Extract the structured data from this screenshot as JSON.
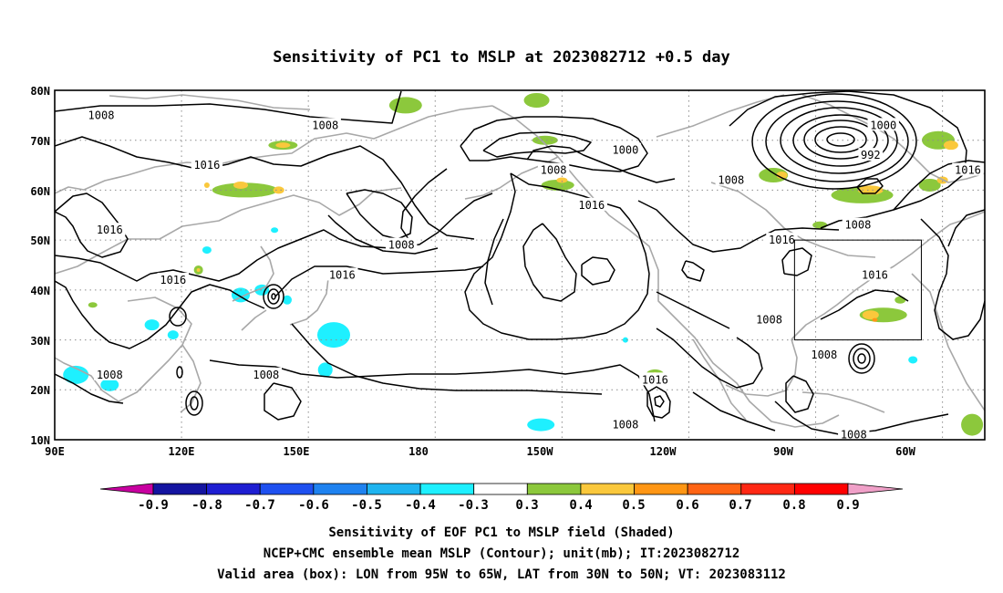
{
  "title": "Sensitivity of PC1 to MSLP at 2023082712 +0.5 day",
  "axes": {
    "x_ticks": [
      "90E",
      "120E",
      "150E",
      "180",
      "150W",
      "120W",
      "90W",
      "60W"
    ],
    "y_ticks": [
      "80N",
      "70N",
      "60N",
      "50N",
      "40N",
      "30N",
      "20N",
      "10N"
    ],
    "lon_range_east": [
      90,
      310
    ],
    "lat_range": [
      10,
      80
    ],
    "grid": true
  },
  "contour_labels": [
    {
      "text": "1008",
      "lon": 101,
      "lat": 75
    },
    {
      "text": "1008",
      "lon": 154,
      "lat": 73
    },
    {
      "text": "1016",
      "lon": 126,
      "lat": 65
    },
    {
      "text": "1016",
      "lon": 103,
      "lat": 52
    },
    {
      "text": "1016",
      "lon": 118,
      "lat": 42
    },
    {
      "text": "1008",
      "lon": 103,
      "lat": 23
    },
    {
      "text": "1008",
      "lon": 140,
      "lat": 23
    },
    {
      "text": "1016",
      "lon": 158,
      "lat": 43
    },
    {
      "text": "1008",
      "lon": 172,
      "lat": 49
    },
    {
      "text": "1000",
      "lon": 225,
      "lat": 68
    },
    {
      "text": "1008",
      "lon": 208,
      "lat": 64
    },
    {
      "text": "1016",
      "lon": 217,
      "lat": 57
    },
    {
      "text": "1008",
      "lon": 250,
      "lat": 62
    },
    {
      "text": "1016",
      "lon": 262,
      "lat": 50
    },
    {
      "text": "1008",
      "lon": 259,
      "lat": 34
    },
    {
      "text": "1008",
      "lon": 272,
      "lat": 27
    },
    {
      "text": "1016",
      "lon": 232,
      "lat": 22
    },
    {
      "text": "1008",
      "lon": 225,
      "lat": 13
    },
    {
      "text": "1008",
      "lon": 280,
      "lat": 81
    },
    {
      "text": "1000",
      "lon": 286,
      "lat": 73
    },
    {
      "text": "992",
      "lon": 283,
      "lat": 67
    },
    {
      "text": "1016",
      "lon": 306,
      "lat": 64
    },
    {
      "text": "1008",
      "lon": 280,
      "lat": 53
    },
    {
      "text": "1016",
      "lon": 284,
      "lat": 43
    },
    {
      "text": "1008",
      "lon": 279,
      "lat": 11
    }
  ],
  "valid_box": {
    "lon_min": 265,
    "lon_max": 295,
    "lat_min": 30,
    "lat_max": 50
  },
  "colorbar": {
    "labels": [
      "-0.9",
      "-0.8",
      "-0.7",
      "-0.6",
      "-0.5",
      "-0.4",
      "-0.3",
      "0.3",
      "0.4",
      "0.5",
      "0.6",
      "0.7",
      "0.8",
      "0.9"
    ],
    "colors": [
      "#c800a0",
      "#1414a0",
      "#1e1ed2",
      "#1e50f0",
      "#1e82f0",
      "#1eb4f0",
      "#1ef0ff",
      "#ffffff",
      "#8cc83c",
      "#fac83c",
      "#ff9614",
      "#ff6414",
      "#ff2814",
      "#ff0000",
      "#f0a0c8"
    ]
  },
  "footer": {
    "line1": "Sensitivity of EOF PC1 to MSLP field (Shaded)",
    "line2": "NCEP+CMC ensemble mean MSLP (Contour); unit(mb); IT:2023082712",
    "line3": "Valid area (box): LON from 95W to 65W, LAT from 30N to 50N; VT: 2023083112"
  },
  "colors": {
    "positive_shade": "#8cc83c",
    "positive_strong": "#fac83c",
    "positive_stronger": "#ff9614",
    "negative_shade": "#1ef0ff",
    "coast": "#a8a8a8",
    "grid": "#8c8c8c"
  }
}
